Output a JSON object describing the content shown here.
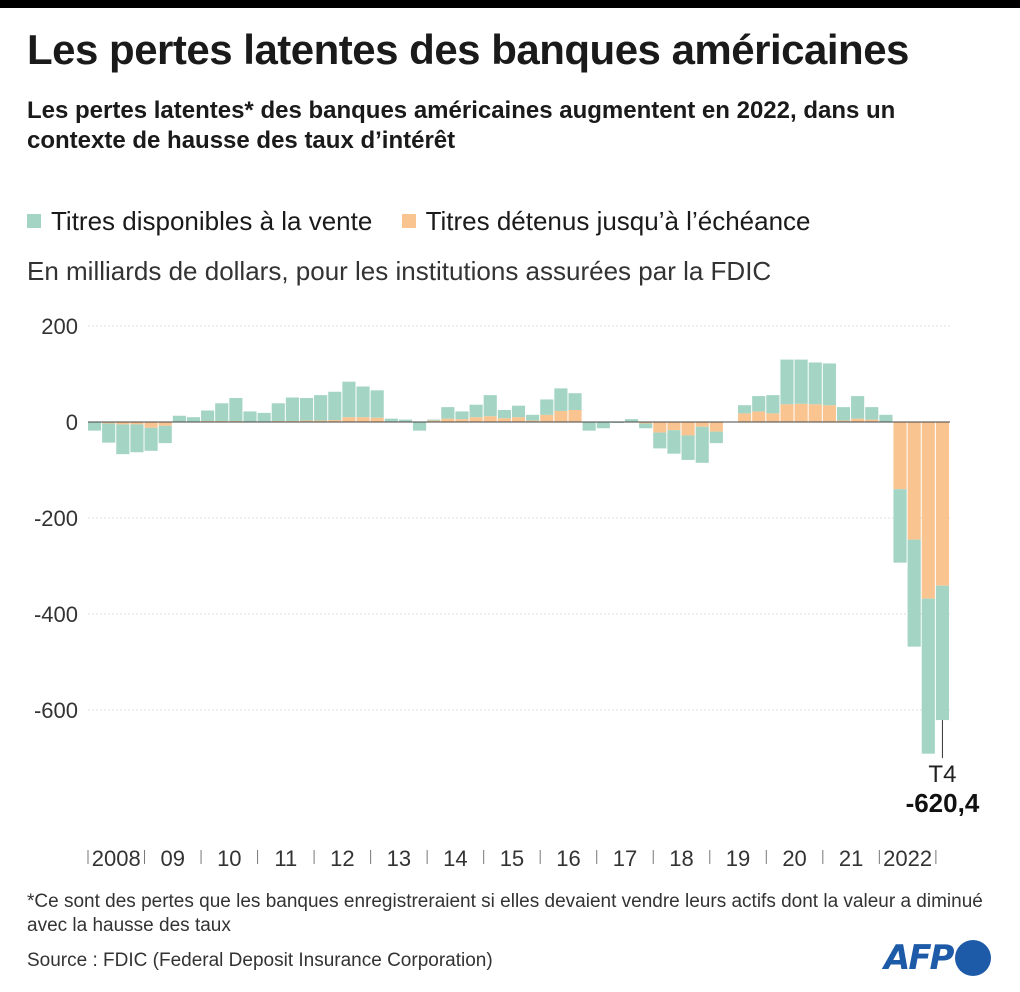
{
  "title": "Les pertes latentes des banques américaines",
  "subtitle": "Les pertes latentes* des banques américaines augmentent en 2022, dans un contexte de hausse des taux d’intérêt",
  "unit_note": "En milliards de dollars, pour les institutions assurées par la FDIC",
  "footnote": "*Ce sont des pertes que les banques enregistreraient si elles devaient vendre leurs actifs dont la valeur a diminué avec la hausse des taux",
  "source": "Source : FDIC (Federal Deposit Insurance Corporation)",
  "logo": "AFP",
  "colors": {
    "afs": "#a3d4c4",
    "htm": "#f9c490",
    "grid": "#dcdcdc",
    "axis": "#555555"
  },
  "chart_data": {
    "type": "bar",
    "stacked": true,
    "legend": [
      "Titres disponibles à la vente",
      "Titres détenus jusqu’à l’échéance"
    ],
    "legend_position": "top-left",
    "ylim": [
      -700,
      200
    ],
    "yticks": [
      200,
      0,
      -200,
      -400,
      -600
    ],
    "ytick_labels": [
      "200",
      "0",
      "-200",
      "-400",
      "-600"
    ],
    "grid": true,
    "year_labels": [
      "2008",
      "09",
      "10",
      "11",
      "12",
      "13",
      "14",
      "15",
      "16",
      "17",
      "18",
      "19",
      "20",
      "21",
      "2022"
    ],
    "quarters_per_year": 4,
    "annotation": {
      "label": "T4",
      "value": "-620,4"
    },
    "series": [
      {
        "name": "Titres disponibles à la vente",
        "values": [
          -18,
          -40,
          -62,
          -58,
          -48,
          -36,
          12,
          9,
          22,
          37,
          48,
          21,
          18,
          37,
          49,
          47,
          53,
          59,
          74,
          64,
          57,
          6,
          4,
          -17,
          2,
          24,
          16,
          26,
          44,
          17,
          24,
          12,
          32,
          47,
          35,
          -18,
          -13,
          -2,
          6,
          -10,
          -33,
          -49,
          -51,
          -75,
          -24,
          1,
          17,
          32,
          38,
          93,
          92,
          87,
          87,
          28,
          47,
          26,
          15,
          -153,
          -223,
          -323,
          -280
        ]
      },
      {
        "name": "Titres détenus jusqu’à l’échéance",
        "values": [
          0,
          -3,
          -5,
          -5,
          -12,
          -8,
          1,
          1,
          2,
          2,
          2,
          1,
          1,
          2,
          2,
          3,
          3,
          4,
          10,
          10,
          9,
          1,
          1,
          -1,
          3,
          7,
          6,
          10,
          12,
          8,
          10,
          3,
          15,
          23,
          25,
          0,
          0,
          0,
          0,
          -3,
          -22,
          -17,
          -28,
          -10,
          -20,
          0,
          18,
          22,
          18,
          37,
          38,
          37,
          35,
          3,
          7,
          5,
          0,
          -140,
          -245,
          -368,
          -341
        ]
      }
    ]
  }
}
